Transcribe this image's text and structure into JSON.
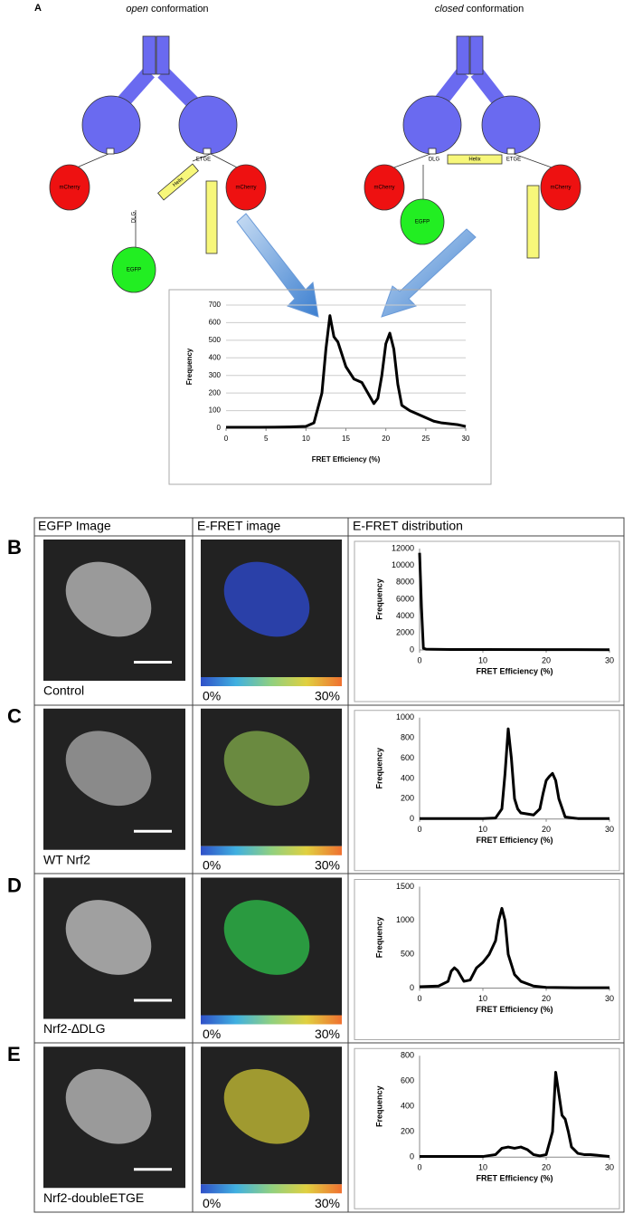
{
  "panel_a": {
    "letter": "A",
    "open": {
      "title_em": "open",
      "title_rest": " conformation",
      "mcherry_left": "mCherry",
      "mcherry_right": "mCherry",
      "helix": "Helix",
      "etge": "ETGE",
      "dlg": "DLG",
      "egfp": "EGFP"
    },
    "closed": {
      "title_em": "closed",
      "title_rest": " conformation",
      "mcherry_left": "mCherry",
      "mcherry_right": "mCherry",
      "helix": "Helix",
      "etge": "ETGE",
      "dlg": "DLG",
      "egfp": "EGFP"
    }
  },
  "table": {
    "header": [
      "EGFP Image",
      "E-FRET  image",
      "E-FRET distribution"
    ],
    "rows": [
      {
        "letter": "B",
        "label": "Control",
        "colorbar_min": "0%",
        "colorbar_max": "30%"
      },
      {
        "letter": "C",
        "label": "WT Nrf2",
        "colorbar_min": "0%",
        "colorbar_max": "30%"
      },
      {
        "letter": "D",
        "label": "Nrf2-∆DLG",
        "colorbar_min": "0%",
        "colorbar_max": "30%"
      },
      {
        "letter": "E",
        "label": "Nrf2-doubleETGE",
        "colorbar_min": "0%",
        "colorbar_max": "30%"
      }
    ]
  },
  "chart_data": [
    {
      "type": "line",
      "xlabel": "FRET Efficiency (%)",
      "ylabel": "Frequency",
      "color": "#000000",
      "grid": true,
      "x": [
        0,
        2,
        4,
        6,
        8,
        10,
        11,
        12,
        12.5,
        13,
        13.5,
        14,
        14.5,
        15,
        16,
        17,
        18,
        18.5,
        19,
        19.5,
        20,
        20.5,
        21,
        21.5,
        22,
        23,
        24,
        25,
        26,
        27,
        28,
        29,
        30
      ],
      "values": [
        5,
        5,
        5,
        6,
        7,
        10,
        30,
        200,
        450,
        640,
        520,
        490,
        420,
        350,
        280,
        260,
        180,
        140,
        170,
        300,
        480,
        540,
        450,
        250,
        130,
        100,
        80,
        60,
        40,
        30,
        25,
        20,
        10
      ],
      "xlim": [
        0,
        30
      ],
      "xticks": [
        0,
        5,
        10,
        15,
        20,
        25,
        30
      ],
      "ylim": [
        0,
        700
      ],
      "yticks": [
        0,
        100,
        200,
        300,
        400,
        500,
        600,
        700
      ]
    },
    {
      "type": "line",
      "xlabel": "FRET Efficiency (%)",
      "ylabel": "Frequency",
      "color": "#000000",
      "grid": false,
      "x": [
        0,
        0.3,
        0.6,
        1,
        2,
        5,
        10,
        20,
        30
      ],
      "values": [
        11500,
        5000,
        200,
        100,
        80,
        60,
        50,
        40,
        30
      ],
      "xlim": [
        0,
        30
      ],
      "xticks": [
        0,
        10,
        20,
        30
      ],
      "ylim": [
        0,
        12000
      ],
      "yticks": [
        0,
        2000,
        4000,
        6000,
        8000,
        10000,
        12000
      ]
    },
    {
      "type": "line",
      "xlabel": "FRET Efficiency (%)",
      "ylabel": "Frequency",
      "color": "#000000",
      "grid": false,
      "x": [
        0,
        5,
        10,
        12,
        13,
        13.5,
        14,
        14.5,
        15,
        15.5,
        16,
        17,
        18,
        19,
        19.5,
        20,
        20.5,
        21,
        21.5,
        22,
        23,
        25,
        30
      ],
      "values": [
        5,
        5,
        5,
        10,
        100,
        450,
        890,
        600,
        200,
        100,
        60,
        50,
        40,
        100,
        250,
        380,
        420,
        450,
        380,
        200,
        20,
        5,
        5
      ],
      "xlim": [
        0,
        30
      ],
      "xticks": [
        0,
        10,
        20,
        30
      ],
      "ylim": [
        0,
        1000
      ],
      "yticks": [
        0,
        200,
        400,
        600,
        800,
        1000
      ]
    },
    {
      "type": "line",
      "xlabel": "FRET Efficiency (%)",
      "ylabel": "Frequency",
      "color": "#000000",
      "grid": false,
      "x": [
        0,
        3,
        4.5,
        5,
        5.5,
        6,
        7,
        8,
        9,
        10,
        11,
        12,
        12.5,
        13,
        13.5,
        14,
        15,
        16,
        18,
        20,
        25,
        30
      ],
      "values": [
        20,
        30,
        100,
        250,
        300,
        260,
        100,
        120,
        300,
        380,
        500,
        700,
        1000,
        1180,
        1000,
        500,
        200,
        100,
        30,
        10,
        5,
        5
      ],
      "xlim": [
        0,
        30
      ],
      "xticks": [
        0,
        10,
        20,
        30
      ],
      "ylim": [
        0,
        1500
      ],
      "yticks": [
        0,
        500,
        1000,
        1500
      ]
    },
    {
      "type": "line",
      "xlabel": "FRET Efficiency (%)",
      "ylabel": "Frequency",
      "color": "#000000",
      "grid": false,
      "x": [
        0,
        10,
        12,
        13,
        14,
        15,
        16,
        17,
        18,
        19,
        20,
        21,
        21.5,
        22,
        22.5,
        23,
        23.5,
        24,
        25,
        26,
        27,
        28,
        29,
        30
      ],
      "values": [
        5,
        5,
        20,
        70,
        80,
        70,
        80,
        60,
        20,
        10,
        20,
        200,
        670,
        500,
        330,
        300,
        200,
        80,
        30,
        20,
        20,
        15,
        10,
        5
      ],
      "xlim": [
        0,
        30
      ],
      "xticks": [
        0,
        10,
        20,
        30
      ],
      "ylim": [
        0,
        800
      ],
      "yticks": [
        0,
        200,
        400,
        600,
        800
      ]
    }
  ]
}
